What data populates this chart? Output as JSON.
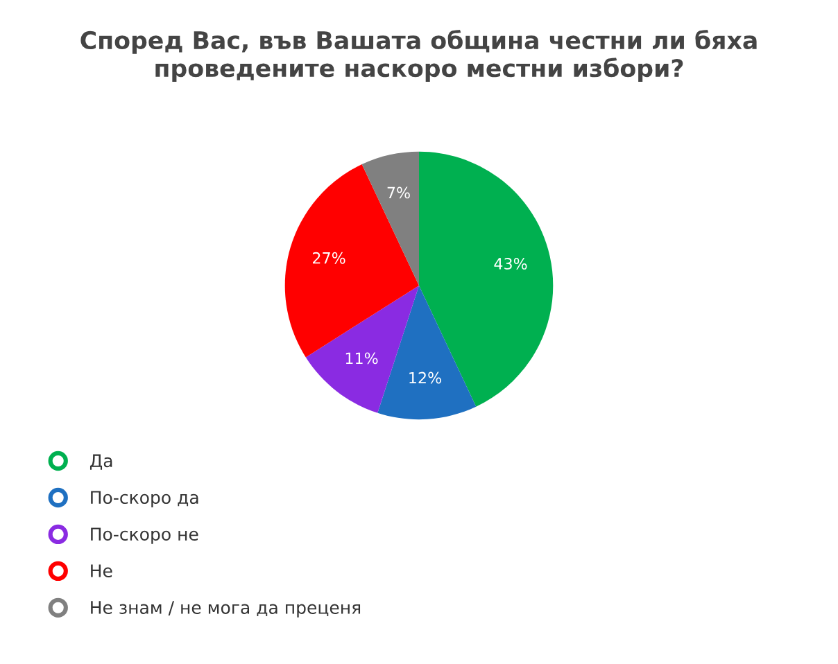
{
  "chart_data": {
    "type": "pie",
    "title": "Според Вас, във Вашата община честни ли бяха проведените наскоро местни избори?",
    "categories": [
      "Да",
      "По-скоро да",
      "По-скоро не",
      "Не",
      "Не знам / не мога да преценя"
    ],
    "values": [
      43,
      12,
      11,
      27,
      7
    ],
    "value_labels": [
      "43%",
      "12%",
      "11%",
      "27%",
      "7%"
    ],
    "colors": [
      "#00b050",
      "#1f70c1",
      "#8a2be2",
      "#ff0000",
      "#808080"
    ],
    "legend": "bottom left"
  }
}
